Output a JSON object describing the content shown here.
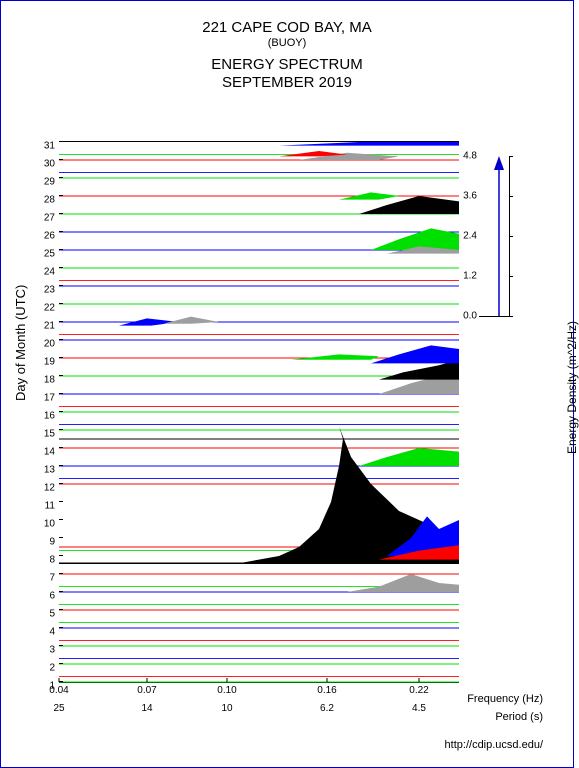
{
  "title": {
    "line1": "221 CAPE COD BAY, MA",
    "line2": "(BUOY)",
    "line3": "ENERGY SPECTRUM",
    "line4": "SEPTEMBER 2019"
  },
  "axes": {
    "y": {
      "label": "Day of Month (UTC)",
      "min": 1,
      "max": 31,
      "ticks": [
        1,
        2,
        3,
        4,
        5,
        6,
        7,
        8,
        9,
        10,
        11,
        12,
        13,
        14,
        15,
        16,
        17,
        18,
        19,
        20,
        21,
        22,
        23,
        24,
        25,
        26,
        27,
        28,
        29,
        30,
        31
      ]
    },
    "x_freq": {
      "label": "Frequency (Hz)",
      "ticks": [
        0.04,
        0.07,
        0.1,
        0.16,
        0.22
      ],
      "positions": [
        0.0,
        0.22,
        0.42,
        0.67,
        0.9
      ]
    },
    "x_period": {
      "label": "Period (s)",
      "ticks": [
        25,
        14,
        10,
        6.2,
        4.5
      ],
      "positions": [
        0.0,
        0.22,
        0.42,
        0.67,
        0.9
      ]
    }
  },
  "legend": {
    "label": "Energy Density (m^2/Hz)",
    "ticks": [
      0.0,
      1.2,
      2.4,
      3.6,
      4.8
    ]
  },
  "colors": {
    "black": "#000000",
    "blue": "#0000ff",
    "red": "#ff0000",
    "green": "#00e000",
    "gray": "#9e9e9e",
    "frame": "#0000cc",
    "bg": "#ffffff"
  },
  "baselines": [
    {
      "day": 1,
      "color": "#00e000"
    },
    {
      "day": 1.3,
      "color": "#ff0000"
    },
    {
      "day": 2,
      "color": "#00e000"
    },
    {
      "day": 2.3,
      "color": "#0000ff"
    },
    {
      "day": 3,
      "color": "#00e000"
    },
    {
      "day": 3.3,
      "color": "#ff0000"
    },
    {
      "day": 4,
      "color": "#0000ff"
    },
    {
      "day": 4.3,
      "color": "#00e000"
    },
    {
      "day": 5,
      "color": "#ff0000"
    },
    {
      "day": 5.3,
      "color": "#00e000"
    },
    {
      "day": 6,
      "color": "#0000ff"
    },
    {
      "day": 6.3,
      "color": "#00e000"
    },
    {
      "day": 7,
      "color": "#ff0000"
    },
    {
      "day": 7.6,
      "color": "#000000",
      "width": 1.5
    },
    {
      "day": 8.3,
      "color": "#00e000"
    },
    {
      "day": 8.5,
      "color": "#ff0000"
    },
    {
      "day": 12,
      "color": "#ff0000"
    },
    {
      "day": 12.3,
      "color": "#0000ff"
    },
    {
      "day": 13,
      "color": "#0000ff"
    },
    {
      "day": 14,
      "color": "#ff0000"
    },
    {
      "day": 14.5,
      "color": "#000000"
    },
    {
      "day": 15,
      "color": "#00e000"
    },
    {
      "day": 15.3,
      "color": "#0000ff"
    },
    {
      "day": 16,
      "color": "#00e000"
    },
    {
      "day": 16.3,
      "color": "#ff0000"
    },
    {
      "day": 17,
      "color": "#0000ff"
    },
    {
      "day": 18,
      "color": "#00e000"
    },
    {
      "day": 19,
      "color": "#ff0000"
    },
    {
      "day": 20,
      "color": "#0000ff"
    },
    {
      "day": 20.3,
      "color": "#ff0000"
    },
    {
      "day": 21,
      "color": "#0000ff"
    },
    {
      "day": 22,
      "color": "#00e000"
    },
    {
      "day": 23,
      "color": "#0000ff"
    },
    {
      "day": 23.3,
      "color": "#ff0000"
    },
    {
      "day": 24,
      "color": "#00e000"
    },
    {
      "day": 25,
      "color": "#0000ff"
    },
    {
      "day": 26,
      "color": "#0000ff"
    },
    {
      "day": 27,
      "color": "#00e000"
    },
    {
      "day": 28,
      "color": "#ff0000"
    },
    {
      "day": 29,
      "color": "#00e000"
    },
    {
      "day": 29.3,
      "color": "#0000ff"
    },
    {
      "day": 30,
      "color": "#ff0000"
    },
    {
      "day": 30.3,
      "color": "#00e000"
    }
  ],
  "shapes": [
    {
      "comment": "big black peak days 7-15",
      "color": "#000000",
      "points": [
        [
          0.45,
          7.6
        ],
        [
          0.55,
          8.0
        ],
        [
          0.6,
          8.5
        ],
        [
          0.65,
          9.5
        ],
        [
          0.68,
          11
        ],
        [
          0.7,
          13
        ],
        [
          0.71,
          14.5
        ],
        [
          0.7,
          15.2
        ],
        [
          0.73,
          13.5
        ],
        [
          0.78,
          12
        ],
        [
          0.85,
          10.5
        ],
        [
          0.95,
          9.5
        ],
        [
          1.0,
          9.3
        ],
        [
          1.0,
          7.6
        ]
      ]
    },
    {
      "comment": "blue overlay right of black peak",
      "color": "#0000ff",
      "points": [
        [
          0.82,
          8.0
        ],
        [
          0.88,
          9.0
        ],
        [
          0.92,
          10.2
        ],
        [
          0.95,
          9.5
        ],
        [
          1.0,
          10.0
        ],
        [
          1.0,
          8.0
        ]
      ]
    },
    {
      "comment": "red strip under blue",
      "color": "#ff0000",
      "points": [
        [
          0.8,
          7.8
        ],
        [
          0.9,
          8.3
        ],
        [
          1.0,
          8.6
        ],
        [
          1.0,
          7.8
        ]
      ]
    },
    {
      "comment": "gray lobe day 6-7",
      "color": "#9e9e9e",
      "points": [
        [
          0.72,
          6.0
        ],
        [
          0.8,
          6.3
        ],
        [
          0.88,
          7.0
        ],
        [
          0.95,
          6.5
        ],
        [
          1.0,
          6.4
        ],
        [
          1.0,
          6.0
        ]
      ]
    },
    {
      "comment": "green lobe day 13-14",
      "color": "#00e000",
      "points": [
        [
          0.75,
          13.0
        ],
        [
          0.82,
          13.5
        ],
        [
          0.9,
          14.0
        ],
        [
          1.0,
          13.8
        ],
        [
          1.0,
          13.0
        ]
      ]
    },
    {
      "comment": "gray day 17",
      "color": "#9e9e9e",
      "points": [
        [
          0.8,
          17.0
        ],
        [
          0.88,
          17.6
        ],
        [
          0.95,
          18.0
        ],
        [
          1.0,
          17.8
        ],
        [
          1.0,
          17.0
        ]
      ]
    },
    {
      "comment": "black day 18",
      "color": "#000000",
      "points": [
        [
          0.8,
          17.8
        ],
        [
          0.86,
          18.2
        ],
        [
          0.95,
          18.6
        ],
        [
          1.0,
          18.9
        ],
        [
          1.0,
          17.8
        ]
      ]
    },
    {
      "comment": "blue day 19",
      "color": "#0000ff",
      "points": [
        [
          0.78,
          18.7
        ],
        [
          0.85,
          19.2
        ],
        [
          0.93,
          19.7
        ],
        [
          1.0,
          19.5
        ],
        [
          1.0,
          18.7
        ]
      ]
    },
    {
      "comment": "green day 19 top",
      "color": "#00e000",
      "points": [
        [
          0.58,
          18.9
        ],
        [
          0.7,
          19.2
        ],
        [
          0.8,
          19.1
        ],
        [
          0.78,
          18.9
        ]
      ]
    },
    {
      "comment": "green lobe day 25-26",
      "color": "#00e000",
      "points": [
        [
          0.78,
          25.0
        ],
        [
          0.85,
          25.6
        ],
        [
          0.93,
          26.2
        ],
        [
          1.0,
          25.9
        ],
        [
          1.0,
          25.0
        ]
      ]
    },
    {
      "comment": "gray under green 25",
      "color": "#9e9e9e",
      "points": [
        [
          0.82,
          24.8
        ],
        [
          0.9,
          25.2
        ],
        [
          1.0,
          25.0
        ],
        [
          1.0,
          24.8
        ]
      ]
    },
    {
      "comment": "black lobe day 27-28",
      "color": "#000000",
      "points": [
        [
          0.75,
          27.0
        ],
        [
          0.82,
          27.5
        ],
        [
          0.9,
          28.0
        ],
        [
          1.0,
          27.7
        ],
        [
          1.0,
          27.0
        ]
      ]
    },
    {
      "comment": "green day 28",
      "color": "#00e000",
      "points": [
        [
          0.7,
          27.8
        ],
        [
          0.78,
          28.2
        ],
        [
          0.85,
          28.0
        ],
        [
          0.8,
          27.8
        ]
      ]
    },
    {
      "comment": "gray day 30",
      "color": "#9e9e9e",
      "points": [
        [
          0.6,
          30.0
        ],
        [
          0.72,
          30.4
        ],
        [
          0.85,
          30.2
        ],
        [
          0.8,
          30.0
        ]
      ]
    },
    {
      "comment": "red day 30",
      "color": "#ff0000",
      "points": [
        [
          0.55,
          30.2
        ],
        [
          0.65,
          30.5
        ],
        [
          0.72,
          30.3
        ],
        [
          0.65,
          30.2
        ]
      ]
    },
    {
      "comment": "blue strip day 31",
      "color": "#0000ff",
      "points": [
        [
          0.55,
          30.8
        ],
        [
          0.75,
          31.0
        ],
        [
          1.0,
          31.0
        ],
        [
          1.0,
          30.8
        ]
      ]
    },
    {
      "comment": "small blue blob day 21",
      "color": "#0000ff",
      "points": [
        [
          0.15,
          20.8
        ],
        [
          0.22,
          21.2
        ],
        [
          0.3,
          21.0
        ],
        [
          0.23,
          20.8
        ]
      ]
    },
    {
      "comment": "small gray blob day 21",
      "color": "#9e9e9e",
      "points": [
        [
          0.26,
          20.9
        ],
        [
          0.33,
          21.3
        ],
        [
          0.4,
          21.0
        ],
        [
          0.33,
          20.9
        ]
      ]
    }
  ],
  "footer": "http://cdip.ucsd.edu/"
}
